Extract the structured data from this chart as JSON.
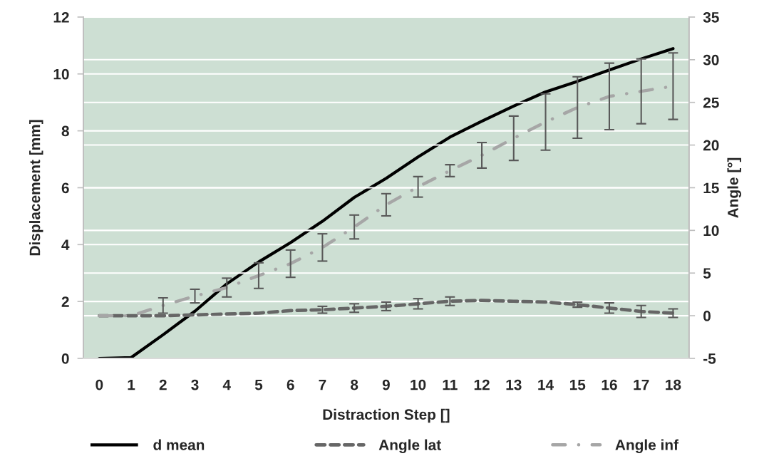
{
  "chart_data": {
    "type": "line",
    "categories": [
      "0",
      "1",
      "2",
      "3",
      "4",
      "5",
      "6",
      "7",
      "8",
      "9",
      "10",
      "11",
      "12",
      "13",
      "14",
      "15",
      "16",
      "17",
      "18"
    ],
    "xlabel": "Distraction Step []",
    "ylabel": "Displacement [mm]",
    "y2label": "Angle [°]",
    "ylim": [
      0,
      12
    ],
    "yticks": [
      0,
      2,
      4,
      6,
      8,
      10,
      12
    ],
    "y2lim": [
      -5,
      35
    ],
    "y2ticks": [
      -5,
      0,
      5,
      10,
      15,
      20,
      25,
      30,
      35
    ],
    "grid": "y",
    "legend": "bottom",
    "series": [
      {
        "name": "d mean",
        "color": "#000000",
        "line_style": "solid",
        "values": [
          0,
          0.03,
          0.83,
          1.66,
          2.62,
          3.39,
          4.07,
          4.82,
          5.66,
          6.33,
          7.08,
          7.78,
          8.34,
          8.87,
          9.37,
          9.74,
          10.14,
          10.53,
          10.89
        ]
      },
      {
        "name": "Angle lat",
        "axis": "y2",
        "color": "#666666",
        "line_style": "dashed",
        "values": [
          0,
          0,
          0,
          0.1,
          0.2,
          0.3,
          0.6,
          0.7,
          0.9,
          1.1,
          1.4,
          1.7,
          1.8,
          1.7,
          1.6,
          1.3,
          0.9,
          0.5,
          0.3
        ],
        "errors": [
          null,
          null,
          null,
          null,
          null,
          null,
          null,
          0.4,
          0.5,
          0.5,
          0.6,
          0.5,
          null,
          null,
          null,
          0.3,
          0.6,
          0.7,
          0.5
        ]
      },
      {
        "name": "Angle inf",
        "axis": "y2",
        "color": "#a6a6a6",
        "line_style": "dashdot",
        "values": [
          0,
          0,
          1.2,
          2.3,
          3.3,
          4.7,
          6.1,
          8.0,
          10.4,
          13.0,
          15.1,
          17.0,
          18.8,
          20.8,
          22.7,
          24.4,
          25.7,
          26.3,
          26.9
        ],
        "errors": [
          null,
          null,
          0.9,
          0.8,
          1.1,
          1.5,
          1.6,
          1.6,
          1.4,
          1.3,
          1.2,
          0.7,
          1.5,
          2.6,
          3.3,
          3.6,
          3.9,
          3.8,
          3.9
        ]
      }
    ]
  }
}
